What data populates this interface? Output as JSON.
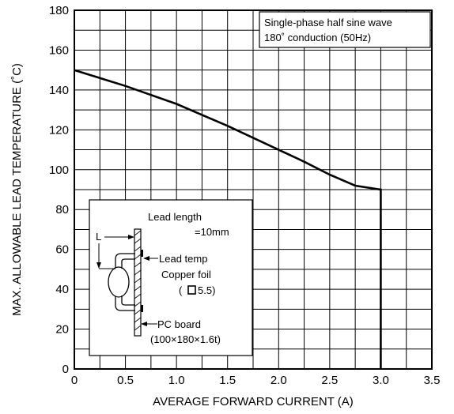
{
  "chart_data": {
    "type": "line",
    "title": "",
    "xlabel": "AVERAGE FORWARD CURRENT (A)",
    "ylabel": "MAX. ALLOWABLE LEAD TEMPERATURE (˚C)",
    "xlim": [
      0,
      3.5
    ],
    "ylim": [
      0,
      180
    ],
    "x_ticks": [
      "0",
      "0.5",
      "1.0",
      "1.5",
      "2.0",
      "2.5",
      "3.0",
      "3.5"
    ],
    "y_ticks": [
      "0",
      "20",
      "40",
      "60",
      "80",
      "100",
      "120",
      "140",
      "160",
      "180"
    ],
    "grid": true,
    "x_minor_step": 0.25,
    "y_minor_step": 10,
    "series": [
      {
        "x": [
          0,
          0.25,
          0.5,
          0.75,
          1.0,
          1.25,
          1.5,
          1.75,
          2.0,
          2.25,
          2.5,
          2.75,
          3.0,
          3.0
        ],
        "y": [
          150,
          146,
          142,
          137.5,
          133,
          127.5,
          122,
          116,
          110,
          104,
          97.5,
          92,
          90,
          0
        ]
      }
    ],
    "condition_note": [
      "Single-phase half sine wave",
      "180˚ conduction (50Hz)"
    ],
    "inset": {
      "lead_length_1": "Lead length",
      "lead_length_2": "=10mm",
      "l_marker": "L",
      "lead_temp": "Lead temp",
      "copper_foil": "Copper foil",
      "foil_size_open": "(",
      "foil_size_value": "5.5)",
      "pc_board": "PC board",
      "pc_board_size": "(100×180×1.6t)"
    }
  }
}
